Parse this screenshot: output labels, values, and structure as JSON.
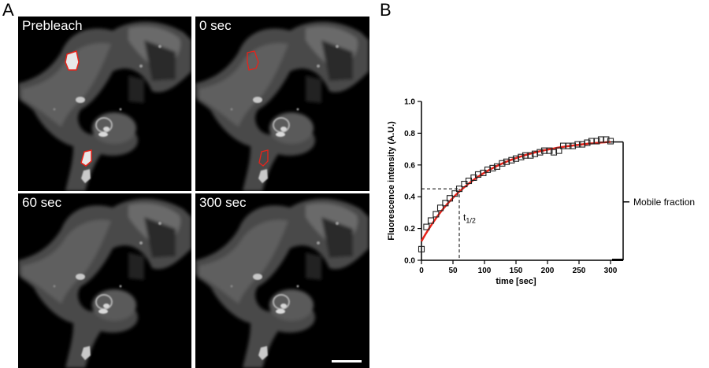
{
  "panel_labels": {
    "a": "A",
    "b": "B"
  },
  "micrographs": [
    {
      "label": "Prebleach",
      "roi": "filled"
    },
    {
      "label": "0 sec",
      "roi": "outline"
    },
    {
      "label": "60 sec",
      "roi": "none"
    },
    {
      "label": "300 sec",
      "roi": "none"
    }
  ],
  "colors": {
    "roi": "#e8231a",
    "fit": "#e8231a",
    "cell": "#9a9a9a"
  },
  "chart_data": {
    "type": "scatter",
    "xlabel": "time [sec]",
    "ylabel": "Fluorescence intensity (A.U.)",
    "xlim": [
      0,
      315
    ],
    "ylim": [
      0,
      1.0
    ],
    "x_ticks": [
      0,
      50,
      100,
      150,
      200,
      250,
      300
    ],
    "y_ticks": [
      "0.0",
      "0.2",
      "0.4",
      "0.6",
      "0.8",
      "1.0"
    ],
    "series": [
      {
        "marker": "open-square",
        "x": [
          0,
          8,
          15,
          23,
          30,
          38,
          45,
          53,
          60,
          68,
          75,
          83,
          90,
          98,
          105,
          113,
          120,
          128,
          135,
          143,
          150,
          158,
          165,
          173,
          180,
          188,
          195,
          203,
          210,
          218,
          225,
          233,
          240,
          248,
          255,
          263,
          270,
          278,
          285,
          293,
          300
        ],
        "y": [
          0.07,
          0.21,
          0.25,
          0.29,
          0.33,
          0.36,
          0.39,
          0.42,
          0.45,
          0.48,
          0.5,
          0.52,
          0.54,
          0.55,
          0.57,
          0.58,
          0.59,
          0.61,
          0.62,
          0.63,
          0.64,
          0.65,
          0.66,
          0.66,
          0.67,
          0.68,
          0.69,
          0.69,
          0.68,
          0.69,
          0.72,
          0.72,
          0.72,
          0.73,
          0.73,
          0.74,
          0.75,
          0.75,
          0.76,
          0.76,
          0.75
        ]
      }
    ],
    "fit": {
      "type": "exponential",
      "y0": 0.12,
      "plateau": 0.77,
      "k": 0.0109
    },
    "half_time": {
      "x": 60,
      "y": 0.45,
      "label": "t",
      "subscript": "1/2"
    },
    "mobile_fraction": {
      "label": "Mobile fraction",
      "top": 0.745,
      "bottom": 0.0
    }
  }
}
